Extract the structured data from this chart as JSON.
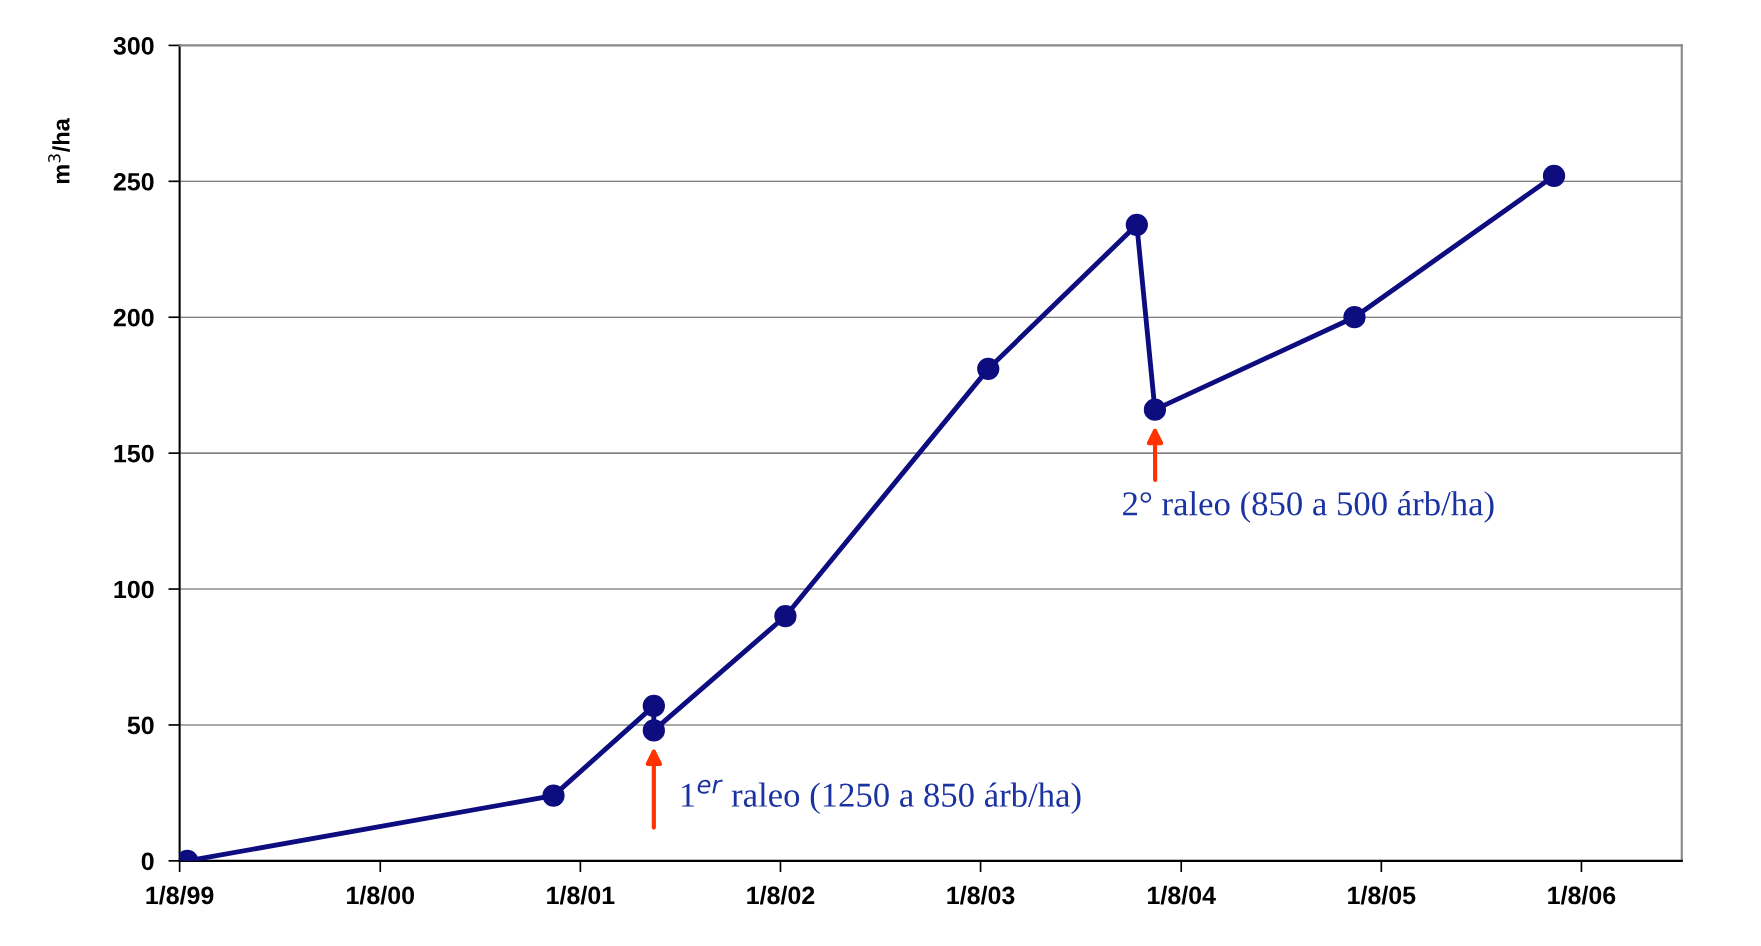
{
  "chart_data": {
    "type": "line",
    "ylabel": "m$^{3}$/ha",
    "x": [
      "1999-08-15",
      "2001-06-13",
      "2001-12-13",
      "2001-12-13",
      "2002-08-10",
      "2003-08-15",
      "2004-05-12",
      "2004-06-14",
      "2005-06-13",
      "2006-06-12"
    ],
    "series": [
      {
        "color": "#0d0d80",
        "values": [
          0,
          24,
          57,
          48,
          90,
          181,
          234,
          166,
          200,
          252
        ]
      }
    ],
    "xlim": [
      "1999-08-01",
      "2007-01-31"
    ],
    "xticks": [
      {
        "value": "1999-08-01",
        "label": "1/8/99"
      },
      {
        "value": "2000-08-01",
        "label": "1/8/00"
      },
      {
        "value": "2001-08-01",
        "label": "1/8/01"
      },
      {
        "value": "2002-08-01",
        "label": "1/8/02"
      },
      {
        "value": "2003-08-01",
        "label": "1/8/03"
      },
      {
        "value": "2004-08-01",
        "label": "1/8/04"
      },
      {
        "value": "2005-08-01",
        "label": "1/8/05"
      },
      {
        "value": "2006-08-01",
        "label": "1/8/06"
      }
    ],
    "ylim": [
      0,
      300
    ],
    "yticks": [
      0,
      50,
      100,
      150,
      200,
      250,
      300
    ],
    "grid": "y",
    "marker": "circle",
    "line_style": "solid",
    "annotations": [
      {
        "text": "1$^{er}$ raleo (1250 a 850 árb/ha)",
        "x": "2001-12-13",
        "y": 48
      },
      {
        "text": "2° raleo (850 a 500 árb/ha)",
        "x": "2004-06-14",
        "y": 166
      }
    ]
  }
}
